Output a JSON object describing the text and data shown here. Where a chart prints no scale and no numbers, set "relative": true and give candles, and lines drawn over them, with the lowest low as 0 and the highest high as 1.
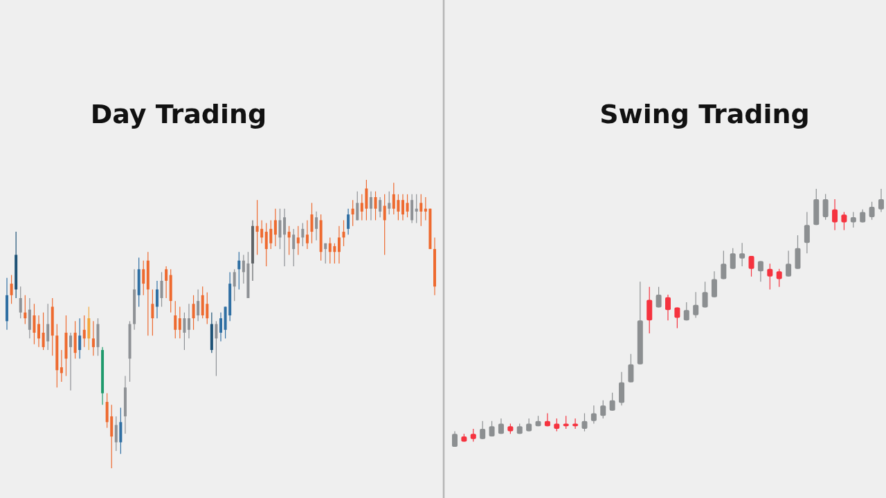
{
  "chart_data": [
    {
      "type": "candlestick",
      "title": "Day Trading",
      "relative": true,
      "categories": [
        null,
        null,
        null,
        null,
        null,
        null,
        null,
        null,
        null,
        null,
        null,
        null,
        null,
        null,
        null,
        null,
        null,
        null,
        null,
        null,
        null,
        null,
        null,
        null,
        null,
        null,
        null,
        null,
        null,
        null,
        null,
        null,
        null,
        null,
        null,
        null,
        null,
        null,
        null,
        null,
        null,
        null,
        null,
        null,
        null,
        null,
        null,
        null,
        null,
        null,
        null,
        null,
        null,
        null,
        null,
        null,
        null,
        null,
        null,
        null,
        null,
        null,
        null,
        null,
        null,
        null,
        null,
        null,
        null,
        null,
        null,
        null,
        null,
        null,
        null,
        null,
        null,
        null,
        null,
        null,
        null,
        null,
        null,
        null,
        null,
        null,
        null,
        null,
        null,
        null,
        null,
        null,
        null,
        null,
        null
      ],
      "ohlc": [
        [
          0.51,
          0.66,
          0.48,
          0.6
        ],
        [
          0.64,
          0.67,
          0.57,
          0.6
        ],
        [
          0.62,
          0.82,
          0.59,
          0.74
        ],
        [
          0.54,
          0.63,
          0.52,
          0.59
        ],
        [
          0.54,
          0.6,
          0.5,
          0.52
        ],
        [
          0.48,
          0.59,
          0.45,
          0.55
        ],
        [
          0.53,
          0.57,
          0.43,
          0.47
        ],
        [
          0.5,
          0.53,
          0.42,
          0.45
        ],
        [
          0.47,
          0.54,
          0.41,
          0.42
        ],
        [
          0.44,
          0.57,
          0.41,
          0.5
        ],
        [
          0.56,
          0.59,
          0.39,
          0.46
        ],
        [
          0.46,
          0.5,
          0.28,
          0.34
        ],
        [
          0.35,
          0.41,
          0.3,
          0.33
        ],
        [
          0.47,
          0.53,
          0.32,
          0.38
        ],
        [
          0.42,
          0.47,
          0.27,
          0.46
        ],
        [
          0.47,
          0.51,
          0.38,
          0.4
        ],
        [
          0.41,
          0.52,
          0.38,
          0.46
        ],
        [
          0.48,
          0.53,
          0.42,
          0.45
        ],
        [
          0.45,
          0.56,
          0.41,
          0.52
        ],
        [
          0.45,
          0.51,
          0.39,
          0.42
        ],
        [
          0.42,
          0.52,
          0.39,
          0.5
        ],
        [
          0.26,
          0.42,
          0.22,
          0.41
        ],
        [
          0.23,
          0.26,
          0.14,
          0.16
        ],
        [
          0.18,
          0.22,
          0,
          0.11
        ],
        [
          0.09,
          0.18,
          0.06,
          0.15
        ],
        [
          0.09,
          0.21,
          0.05,
          0.16
        ],
        [
          0.18,
          0.32,
          0.12,
          0.28
        ],
        [
          0.38,
          0.51,
          0.3,
          0.5
        ],
        [
          0.5,
          0.69,
          0.48,
          0.62
        ],
        [
          0.6,
          0.73,
          0.56,
          0.69
        ],
        [
          0.69,
          0.72,
          0.6,
          0.64
        ],
        [
          0.72,
          0.75,
          0.46,
          0.62
        ],
        [
          0.57,
          0.62,
          0.46,
          0.52
        ],
        [
          0.56,
          0.65,
          0.52,
          0.62
        ],
        [
          0.59,
          0.68,
          0.56,
          0.65
        ],
        [
          0.69,
          0.7,
          0.59,
          0.65
        ],
        [
          0.67,
          0.69,
          0.54,
          0.58
        ],
        [
          0.53,
          0.58,
          0.45,
          0.48
        ],
        [
          0.52,
          0.56,
          0.45,
          0.48
        ],
        [
          0.47,
          0.54,
          0.41,
          0.52
        ],
        [
          0.48,
          0.57,
          0.45,
          0.52
        ],
        [
          0.57,
          0.6,
          0.48,
          0.52
        ],
        [
          0.53,
          0.62,
          0.51,
          0.58
        ],
        [
          0.6,
          0.63,
          0.52,
          0.53
        ],
        [
          0.57,
          0.61,
          0.5,
          0.52
        ],
        [
          0.41,
          0.54,
          0.4,
          0.5
        ],
        [
          0.45,
          0.51,
          0.32,
          0.5
        ],
        [
          0.47,
          0.54,
          0.44,
          0.52
        ],
        [
          0.48,
          0.56,
          0.45,
          0.56
        ],
        [
          0.53,
          0.68,
          0.51,
          0.64
        ],
        [
          0.63,
          0.69,
          0.58,
          0.68
        ],
        [
          0.69,
          0.75,
          0.62,
          0.72
        ],
        [
          0.68,
          0.74,
          0.64,
          0.72
        ],
        [
          0.59,
          0.75,
          0.59,
          0.71
        ],
        [
          0.71,
          0.86,
          0.65,
          0.84
        ],
        [
          0.84,
          0.93,
          0.74,
          0.82
        ],
        [
          0.83,
          0.86,
          0.78,
          0.8
        ],
        [
          0.82,
          0.85,
          0.7,
          0.76
        ],
        [
          0.83,
          0.86,
          0.76,
          0.78
        ],
        [
          0.86,
          0.9,
          0.77,
          0.81
        ],
        [
          0.8,
          0.9,
          0.76,
          0.86
        ],
        [
          0.81,
          0.9,
          0.7,
          0.87
        ],
        [
          0.82,
          0.84,
          0.74,
          0.8
        ],
        [
          0.76,
          0.83,
          0.7,
          0.81
        ],
        [
          0.8,
          0.84,
          0.74,
          0.78
        ],
        [
          0.8,
          0.85,
          0.77,
          0.83
        ],
        [
          0.81,
          0.86,
          0.76,
          0.78
        ],
        [
          0.88,
          0.92,
          0.78,
          0.82
        ],
        [
          0.83,
          0.89,
          0.79,
          0.87
        ],
        [
          0.86,
          0.88,
          0.72,
          0.75
        ],
        [
          0.76,
          0.78,
          0.71,
          0.78
        ],
        [
          0.78,
          0.8,
          0.71,
          0.75
        ],
        [
          0.77,
          0.78,
          0.71,
          0.75
        ],
        [
          0.8,
          0.84,
          0.71,
          0.75
        ],
        [
          0.82,
          0.86,
          0.77,
          0.8
        ],
        [
          0.83,
          0.9,
          0.81,
          0.88
        ],
        [
          0.9,
          0.93,
          0.84,
          0.88
        ],
        [
          0.86,
          0.96,
          0.86,
          0.92
        ],
        [
          0.92,
          0.95,
          0.86,
          0.89
        ],
        [
          0.97,
          1.0,
          0.86,
          0.9
        ],
        [
          0.9,
          0.96,
          0.86,
          0.94
        ],
        [
          0.94,
          0.96,
          0.86,
          0.9
        ],
        [
          0.89,
          0.94,
          0.87,
          0.93
        ],
        [
          0.91,
          0.95,
          0.74,
          0.86
        ],
        [
          0.9,
          0.96,
          0.88,
          0.92
        ],
        [
          0.95,
          0.99,
          0.88,
          0.9
        ],
        [
          0.93,
          0.95,
          0.86,
          0.89
        ],
        [
          0.93,
          0.95,
          0.86,
          0.88
        ],
        [
          0.92,
          0.95,
          0.87,
          0.89
        ],
        [
          0.86,
          0.95,
          0.85,
          0.93
        ],
        [
          0.89,
          0.95,
          0.85,
          0.9
        ],
        [
          0.92,
          0.95,
          0.84,
          0.89
        ],
        [
          0.9,
          0.94,
          0.86,
          0.89
        ],
        [
          0.9,
          0.9,
          0.76,
          0.76
        ],
        [
          0.76,
          0.8,
          0.6,
          0.63
        ]
      ],
      "colors": [
        "#2f6fa3",
        "#ee6a2f",
        "#1e5276",
        "#8e9195",
        "#ee6a2f",
        "#8e9195",
        "#ee6a2f",
        "#ee6a2f",
        "#ee6a2f",
        "#8e9195",
        "#ee6a2f",
        "#ee6a2f",
        "#ee6a2f",
        "#ee6a2f",
        "#8e9195",
        "#ee6a2f",
        "#2f6fa3",
        "#ee6a2f",
        "#f4a63a",
        "#ee6a2f",
        "#8e9195",
        "#1f9a6c",
        "#ee6a2f",
        "#ee6a2f",
        "#8e9195",
        "#2f6fa3",
        "#8e9195",
        "#8e9195",
        "#8e9195",
        "#2f6fa3",
        "#ee6a2f",
        "#ee6a2f",
        "#ee6a2f",
        "#2f6fa3",
        "#8e9195",
        "#ee6a2f",
        "#ee6a2f",
        "#ee6a2f",
        "#ee6a2f",
        "#8e9195",
        "#8e9195",
        "#ee6a2f",
        "#8e9195",
        "#ee6a2f",
        "#ee6a2f",
        "#1e5276",
        "#8e9195",
        "#2f6fa3",
        "#2f6fa3",
        "#2f6fa3",
        "#8e9195",
        "#2f6fa3",
        "#8e9195",
        "#8e9195",
        "#5f6366",
        "#ee6a2f",
        "#ee6a2f",
        "#ee6a2f",
        "#ee6a2f",
        "#ee6a2f",
        "#8e9195",
        "#8e9195",
        "#ee6a2f",
        "#8e9195",
        "#ee6a2f",
        "#8e9195",
        "#ee6a2f",
        "#ee6a2f",
        "#8e9195",
        "#ee6a2f",
        "#8e9195",
        "#ee6a2f",
        "#ee6a2f",
        "#ee6a2f",
        "#ee6a2f",
        "#2f6fa3",
        "#ee6a2f",
        "#8e9195",
        "#ee6a2f",
        "#ee6a2f",
        "#8e9195",
        "#ee6a2f",
        "#8e9195",
        "#ee6a2f",
        "#8e9195",
        "#ee6a2f",
        "#ee6a2f",
        "#ee6a2f",
        "#ee6a2f",
        "#8e9195",
        "#8e9195",
        "#ee6a2f",
        "#ee6a2f",
        "#ee6a2f",
        "#ee6a2f"
      ]
    },
    {
      "type": "candlestick",
      "title": "Swing Trading",
      "relative": true,
      "categories": [
        null,
        null,
        null,
        null,
        null,
        null,
        null,
        null,
        null,
        null,
        null,
        null,
        null,
        null,
        null,
        null,
        null,
        null,
        null,
        null,
        null,
        null,
        null,
        null,
        null,
        null,
        null,
        null,
        null,
        null,
        null,
        null,
        null,
        null,
        null,
        null,
        null,
        null,
        null,
        null,
        null,
        null,
        null,
        null,
        null,
        null,
        null
      ],
      "ohlc": [
        [
          0.0,
          0.06,
          0,
          0.05
        ],
        [
          0.04,
          0.05,
          0.02,
          0.02
        ],
        [
          0.05,
          0.07,
          0.02,
          0.03
        ],
        [
          0.03,
          0.1,
          0.03,
          0.07
        ],
        [
          0.04,
          0.1,
          0.04,
          0.08
        ],
        [
          0.05,
          0.11,
          0.05,
          0.09
        ],
        [
          0.08,
          0.09,
          0.05,
          0.06
        ],
        [
          0.05,
          0.09,
          0.05,
          0.08
        ],
        [
          0.06,
          0.11,
          0.06,
          0.09
        ],
        [
          0.08,
          0.12,
          0.08,
          0.1
        ],
        [
          0.1,
          0.13,
          0.08,
          0.08
        ],
        [
          0.09,
          0.11,
          0.06,
          0.07
        ],
        [
          0.09,
          0.12,
          0.07,
          0.08
        ],
        [
          0.09,
          0.11,
          0.07,
          0.08
        ],
        [
          0.07,
          0.13,
          0.06,
          0.1
        ],
        [
          0.1,
          0.16,
          0.09,
          0.13
        ],
        [
          0.12,
          0.18,
          0.11,
          0.16
        ],
        [
          0.14,
          0.21,
          0.14,
          0.18
        ],
        [
          0.17,
          0.29,
          0.16,
          0.25
        ],
        [
          0.25,
          0.36,
          0.25,
          0.32
        ],
        [
          0.32,
          0.64,
          0.32,
          0.49
        ],
        [
          0.57,
          0.62,
          0.44,
          0.49
        ],
        [
          0.54,
          0.62,
          0.54,
          0.59
        ],
        [
          0.58,
          0.59,
          0.49,
          0.53
        ],
        [
          0.54,
          0.54,
          0.46,
          0.5
        ],
        [
          0.49,
          0.56,
          0.49,
          0.53
        ],
        [
          0.51,
          0.6,
          0.5,
          0.55
        ],
        [
          0.54,
          0.64,
          0.54,
          0.6
        ],
        [
          0.58,
          0.68,
          0.58,
          0.65
        ],
        [
          0.65,
          0.76,
          0.65,
          0.71
        ],
        [
          0.69,
          0.77,
          0.69,
          0.75
        ],
        [
          0.73,
          0.79,
          0.7,
          0.75
        ],
        [
          0.74,
          0.74,
          0.66,
          0.69
        ],
        [
          0.68,
          0.72,
          0.64,
          0.72
        ],
        [
          0.69,
          0.71,
          0.61,
          0.66
        ],
        [
          0.68,
          0.69,
          0.62,
          0.65
        ],
        [
          0.66,
          0.76,
          0.66,
          0.71
        ],
        [
          0.69,
          0.82,
          0.69,
          0.77
        ],
        [
          0.79,
          0.91,
          0.75,
          0.86
        ],
        [
          0.86,
          1.0,
          0.86,
          0.96
        ],
        [
          0.89,
          0.98,
          0.88,
          0.96
        ],
        [
          0.92,
          0.96,
          0.84,
          0.87
        ],
        [
          0.9,
          0.91,
          0.84,
          0.87
        ],
        [
          0.87,
          0.91,
          0.85,
          0.89
        ],
        [
          0.87,
          0.92,
          0.87,
          0.91
        ],
        [
          0.89,
          0.95,
          0.88,
          0.93
        ],
        [
          0.92,
          1.0,
          0.91,
          0.96
        ]
      ],
      "colors": [
        "#8c8f91",
        "#f5333f",
        "#f5333f",
        "#8c8f91",
        "#8c8f91",
        "#8c8f91",
        "#f5333f",
        "#8c8f91",
        "#8c8f91",
        "#8c8f91",
        "#f5333f",
        "#f5333f",
        "#f5333f",
        "#f5333f",
        "#8c8f91",
        "#8c8f91",
        "#8c8f91",
        "#8c8f91",
        "#8c8f91",
        "#8c8f91",
        "#8c8f91",
        "#f5333f",
        "#8c8f91",
        "#f5333f",
        "#f5333f",
        "#8c8f91",
        "#8c8f91",
        "#8c8f91",
        "#8c8f91",
        "#8c8f91",
        "#8c8f91",
        "#8c8f91",
        "#f5333f",
        "#8c8f91",
        "#f5333f",
        "#f5333f",
        "#8c8f91",
        "#8c8f91",
        "#8c8f91",
        "#8c8f91",
        "#8c8f91",
        "#f5333f",
        "#f5333f",
        "#8c8f91",
        "#8c8f91",
        "#8c8f91",
        "#8c8f91"
      ]
    }
  ]
}
